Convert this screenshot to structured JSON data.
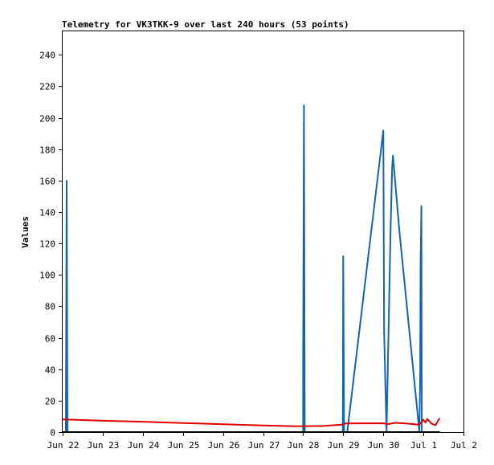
{
  "chart_data": {
    "type": "line",
    "title": "Telemetry for VK3TKK-9 over last 240 hours (53 points)",
    "xlabel": "",
    "ylabel": "Values",
    "x_ticks": [
      "Jun 22",
      "Jun 23",
      "Jun 24",
      "Jun 25",
      "Jun 26",
      "Jun 27",
      "Jun 28",
      "Jun 29",
      "Jun 30",
      "Jul 1",
      "Jul 2"
    ],
    "x_unit": "days since Jun 22 00:00",
    "xlim": [
      0,
      10
    ],
    "y_ticks": [
      0,
      20,
      40,
      60,
      80,
      100,
      120,
      140,
      160,
      180,
      200,
      220,
      240
    ],
    "ylim": [
      0,
      255
    ],
    "grid": false,
    "legend": "none",
    "series": [
      {
        "color": "#1464b4",
        "x": [
          0.0,
          0.08,
          0.1,
          0.12,
          6.0,
          6.0,
          6.02,
          6.04,
          6.99,
          7.0,
          7.02,
          7.1,
          8.0,
          8.02,
          8.08,
          8.18,
          8.22,
          8.24,
          8.4,
          8.9,
          8.92,
          8.93,
          8.95,
          8.96,
          8.98,
          9.0
        ],
        "values": [
          0,
          0,
          160,
          0,
          0,
          48,
          208,
          0,
          0,
          112,
          0,
          0,
          192,
          64,
          0,
          128,
          168,
          176,
          128,
          0,
          36,
          108,
          144,
          0,
          0,
          0
        ]
      },
      {
        "color": "#e00000",
        "x": [
          0.0,
          1.0,
          2.0,
          3.0,
          4.0,
          5.0,
          5.8,
          6.5,
          7.0,
          7.05,
          8.0,
          8.1,
          8.3,
          8.6,
          8.9,
          9.0,
          9.05,
          9.1,
          9.2,
          9.3,
          9.4
        ],
        "values": [
          8,
          7.2,
          6.6,
          5.8,
          5,
          4.2,
          3.7,
          3.9,
          4.8,
          5.5,
          5.6,
          5.0,
          5.9,
          5.4,
          4.7,
          7.8,
          6.2,
          8.3,
          5.4,
          4.4,
          8.7
        ]
      },
      {
        "color": "#000000",
        "x": [
          0.0,
          9.4
        ],
        "values": [
          0,
          0
        ]
      }
    ]
  }
}
